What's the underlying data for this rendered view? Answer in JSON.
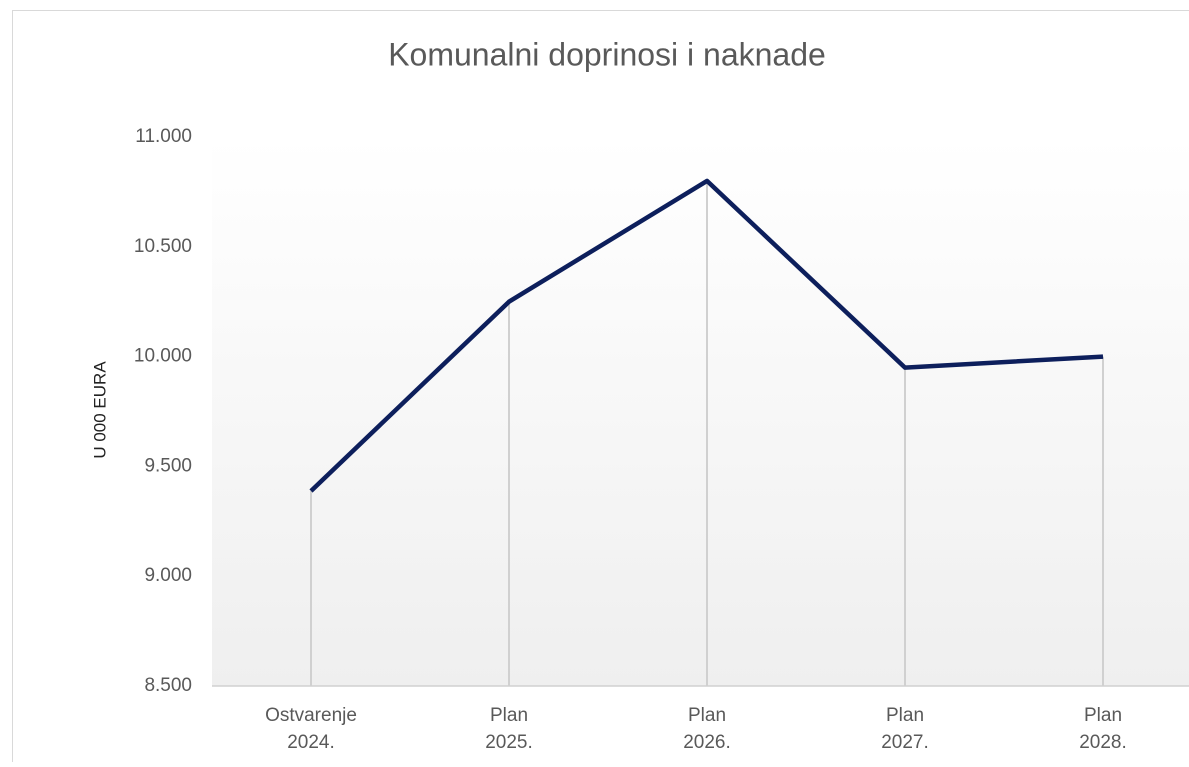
{
  "chart_data": {
    "type": "line",
    "title": "Komunalni  doprinosi  i naknade",
    "y_axis_label": "U 000 EURA",
    "categories": [
      [
        "Ostvarenje",
        "2024."
      ],
      [
        "Plan",
        "2025."
      ],
      [
        "Plan",
        "2026."
      ],
      [
        "Plan",
        "2027."
      ],
      [
        "Plan",
        "2028."
      ]
    ],
    "series": [
      {
        "name": "Komunalni doprinosi i naknade",
        "color": "#0d1f5c",
        "values": [
          9388,
          10250,
          10800,
          9950,
          10000
        ]
      }
    ],
    "ylim": [
      8500,
      11000
    ],
    "yticks": [
      {
        "value": 8500,
        "label": "8.500"
      },
      {
        "value": 9000,
        "label": "9.000"
      },
      {
        "value": 9500,
        "label": "9.500"
      },
      {
        "value": 10000,
        "label": "10.000"
      },
      {
        "value": 10500,
        "label": "10.500"
      },
      {
        "value": 11000,
        "label": "11.000"
      }
    ],
    "drop_lines": true
  }
}
